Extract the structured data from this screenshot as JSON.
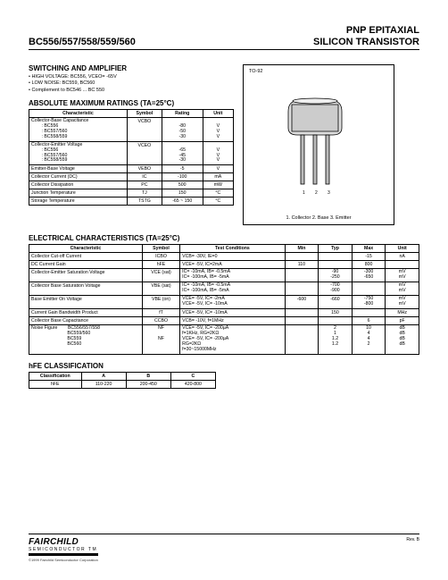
{
  "header": {
    "part": "BC556/557/558/559/560",
    "title1": "PNP EPITAXIAL",
    "title2": "SILICON TRANSISTOR"
  },
  "switching_title": "SWITCHING AND AMPLIFIER",
  "bullets": [
    "• HIGH VOLTAGE: BC556, VCEO= -65V",
    "• LOW NOISE: BC559, BC560",
    "• Complement to BC546 ... BC 550"
  ],
  "package": {
    "label": "TO-92",
    "caption": "1. Collector 2. Base 3. Emitter"
  },
  "abs_title": "ABSOLUTE MAXIMUM RATINGS (TA=25°C)",
  "abs_headers": [
    "Characteristic",
    "Symbol",
    "Rating",
    "Unit"
  ],
  "abs_rows": [
    {
      "c": "Collector-Base Capacitance\n        : BC556\n        : BC557/560\n        : BC558/559",
      "s": "VCBO",
      "r": "\n-80\n-50\n-30",
      "u": "\nV\nV\nV"
    },
    {
      "c": "Collector-Emitter Voltage\n        : BC556\n        : BC557/560\n        : BC558/559",
      "s": "VCEO",
      "r": "\n-65\n-45\n-30",
      "u": "\nV\nV\nV"
    },
    {
      "c": "Emitter-Base Voltage",
      "s": "VEBO",
      "r": "-5",
      "u": "V"
    },
    {
      "c": "Collector Current (DC)",
      "s": "IC",
      "r": "-100",
      "u": "mA"
    },
    {
      "c": "Collector Dissipation",
      "s": "PC",
      "r": "500",
      "u": "mW"
    },
    {
      "c": "Junction Temperature",
      "s": "TJ",
      "r": "150",
      "u": "°C"
    },
    {
      "c": "Storage Temperature",
      "s": "TSTG",
      "r": "-65 ~ 150",
      "u": "°C"
    }
  ],
  "elec_title": "ELECTRICAL CHARACTERISTICS (TA=25°C)",
  "elec_headers": [
    "Characteristic",
    "Symbol",
    "Test Conditions",
    "Min",
    "Typ",
    "Max",
    "Unit"
  ],
  "elec_rows": [
    {
      "c": "Collector Cut-off Current",
      "s": "ICBO",
      "tc": "VCB= -30V, IE=0",
      "min": "",
      "typ": "",
      "max": "-15",
      "u": "nA"
    },
    {
      "c": "DC Current Gain",
      "s": "hFE",
      "tc": "VCE= -5V, IC=2mA",
      "min": "110",
      "typ": "",
      "max": "800",
      "u": ""
    },
    {
      "c": "Collector-Emitter Saturation  Voltage",
      "s": "VCE (sat)",
      "tc": "IC= -10mA, IB= -0.5mA\nIC= -100mA, IB= -5mA",
      "min": "",
      "typ": "-90\n-250",
      "max": "-300\n-650",
      "u": "mV\nmV"
    },
    {
      "c": "Collector Base Saturation Voltage",
      "s": "VBE (sat)",
      "tc": "IC= -10mA, IB= -0.5mA\nIC= -100mA, IB= -5mA",
      "min": "",
      "typ": "-700\n-900",
      "max": "",
      "u": "mV\nmV"
    },
    {
      "c": "Base Emitter On Voltage",
      "s": "VBE (on)",
      "tc": "VCE= -5V, IC= -2mA\nVCE= -5V, IC= -10mA",
      "min": "-600",
      "typ": "-660",
      "max": "-750\n-800",
      "u": "mV\nmV"
    },
    {
      "c": "Current Gain Bandwidth Product",
      "s": "fT",
      "tc": "VCE= -5V, IC= -10mA",
      "min": "",
      "typ": "150",
      "max": "",
      "u": "MHz"
    },
    {
      "c": "Collector Base Capacitance",
      "s": "CCBO",
      "tc": "VCB= -10V, f=1MHz",
      "min": "",
      "typ": "",
      "max": "6",
      "u": "pF"
    },
    {
      "c": "Noise Figure        BC556/557/558\n                            BC559/560\n                            BC559\n                            BC560",
      "s": "NF\n\nNF",
      "tc": "VCE= -5V, IC= -200µA\nf=1KHz, RG=2KΩ\nVCE= -5V, IC= -200µA\nRG=2KΩ\nf=30~15000MHz",
      "min": "",
      "typ": "2\n1\n1.2\n1.2",
      "max": "10\n4\n4\n2",
      "u": "dB\ndB\ndB\ndB"
    }
  ],
  "hfe_title": "hFE CLASSIFICATION",
  "hfe_headers": [
    "Classification",
    "A",
    "B",
    "C"
  ],
  "hfe_row": {
    "c": "hFE",
    "a": "110-220",
    "b": "200-450",
    "cc": "420-800"
  },
  "footer": {
    "logo": "FAIRCHILD",
    "logosub": "SEMICONDUCTOR TM",
    "copy": "©1999 Fairchild Semiconductor Corporation",
    "rev": "Rev. B"
  }
}
